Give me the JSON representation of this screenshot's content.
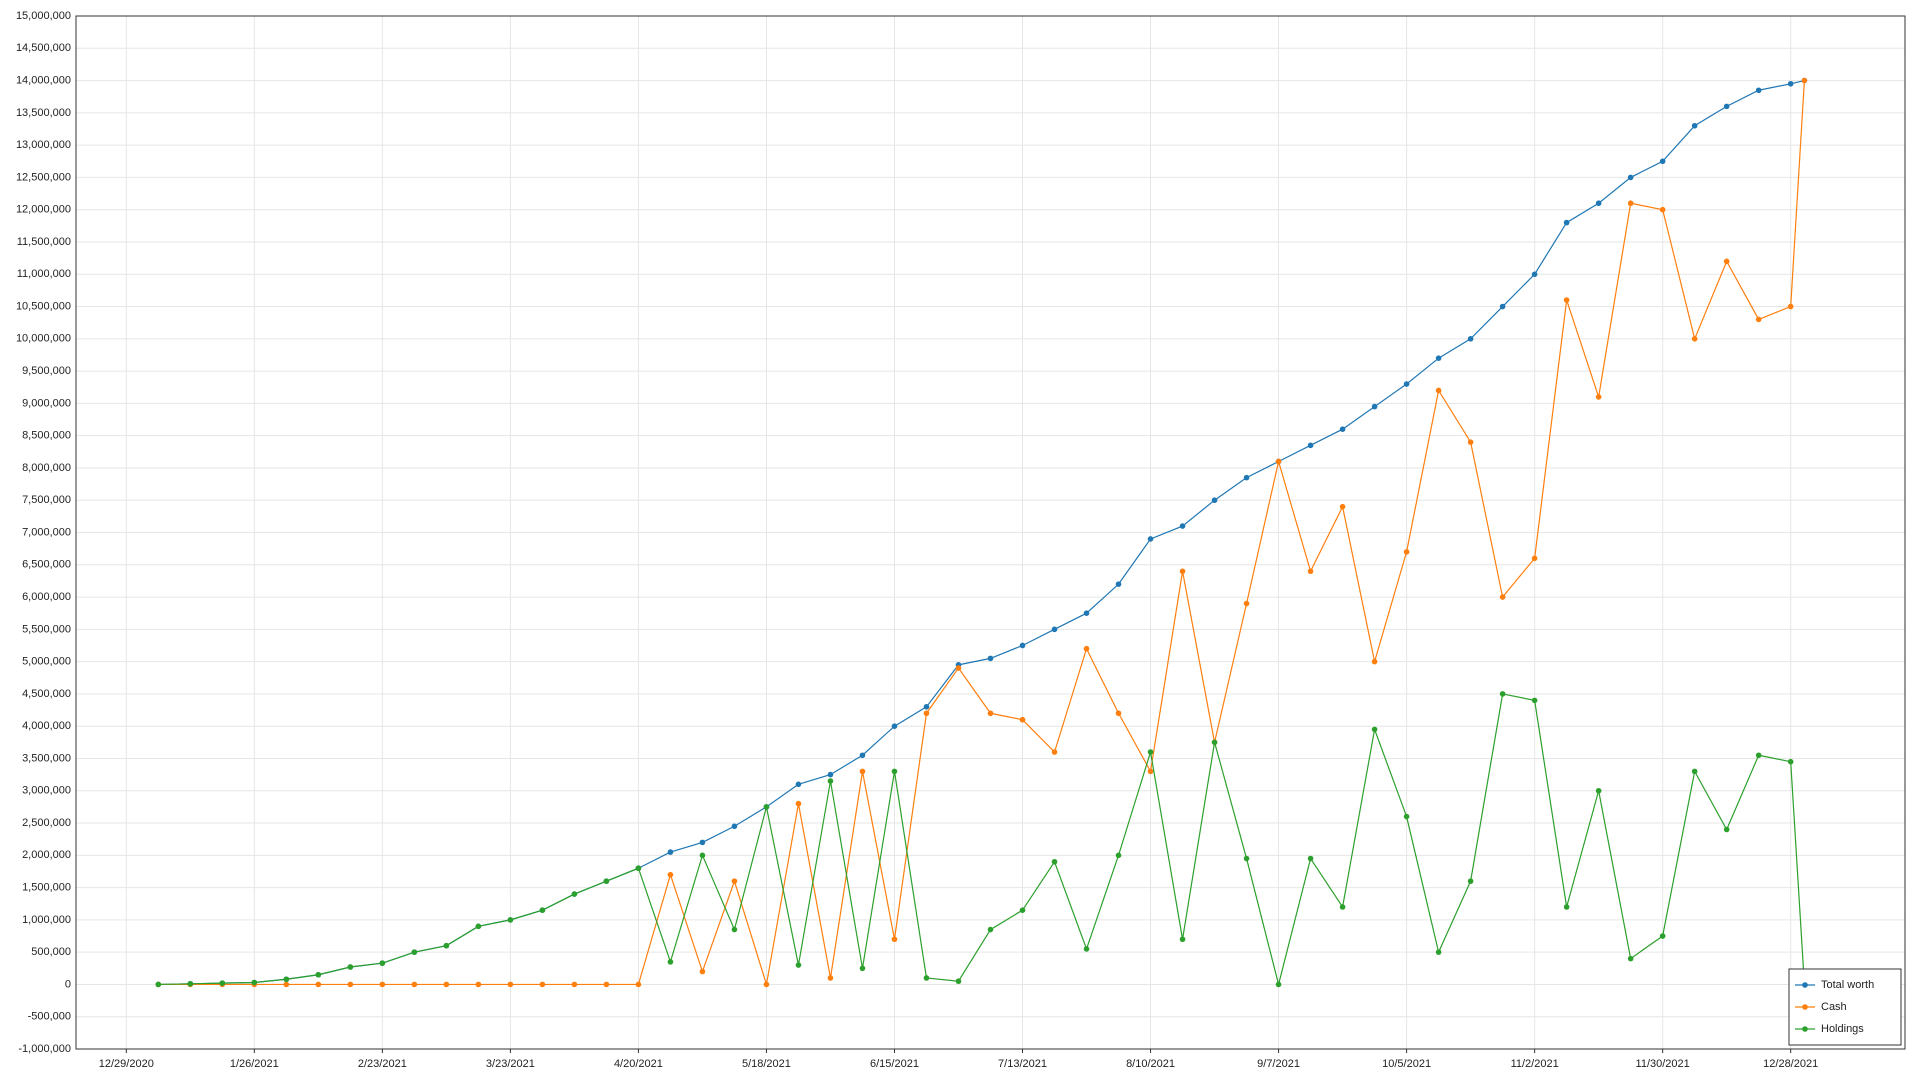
{
  "chart_data": {
    "type": "line",
    "x": [
      "1/5/2021",
      "1/12/2021",
      "1/19/2021",
      "1/26/2021",
      "2/2/2021",
      "2/9/2021",
      "2/16/2021",
      "2/23/2021",
      "3/2/2021",
      "3/9/2021",
      "3/16/2021",
      "3/23/2021",
      "3/30/2021",
      "4/6/2021",
      "4/13/2021",
      "4/20/2021",
      "4/27/2021",
      "5/4/2021",
      "5/11/2021",
      "5/18/2021",
      "5/25/2021",
      "6/1/2021",
      "6/8/2021",
      "6/15/2021",
      "6/22/2021",
      "6/29/2021",
      "7/6/2021",
      "7/13/2021",
      "7/20/2021",
      "7/27/2021",
      "8/3/2021",
      "8/10/2021",
      "8/17/2021",
      "8/24/2021",
      "8/31/2021",
      "9/7/2021",
      "9/14/2021",
      "9/21/2021",
      "9/28/2021",
      "10/5/2021",
      "10/12/2021",
      "10/19/2021",
      "10/26/2021",
      "11/2/2021",
      "11/9/2021",
      "11/16/2021",
      "11/23/2021",
      "11/30/2021",
      "12/7/2021",
      "12/14/2021",
      "12/21/2021",
      "12/28/2021",
      "12/31/2021"
    ],
    "series": [
      {
        "name": "Total worth",
        "color": "#1f77b4",
        "values": [
          0,
          10000,
          20000,
          30000,
          80000,
          150000,
          270000,
          330000,
          500000,
          600000,
          900000,
          1000000,
          1150000,
          1400000,
          1600000,
          1800000,
          2050000,
          2200000,
          2450000,
          2750000,
          3100000,
          3250000,
          3550000,
          4000000,
          4300000,
          4950000,
          5050000,
          5250000,
          5500000,
          5750000,
          6200000,
          6900000,
          7100000,
          7500000,
          7850000,
          8100000,
          8350000,
          8600000,
          8950000,
          9300000,
          9700000,
          10000000,
          10500000,
          11000000,
          11800000,
          12100000,
          12500000,
          12750000,
          13300000,
          13600000,
          13850000,
          13950000,
          14000000
        ]
      },
      {
        "name": "Cash",
        "color": "#ff7f0e",
        "values": [
          0,
          0,
          0,
          0,
          0,
          0,
          0,
          0,
          0,
          0,
          0,
          0,
          0,
          0,
          0,
          0,
          1700000,
          200000,
          1600000,
          0,
          2800000,
          100000,
          3300000,
          700000,
          4200000,
          4900000,
          4200000,
          4100000,
          3600000,
          5200000,
          4200000,
          3300000,
          6400000,
          3750000,
          5900000,
          8100000,
          6400000,
          7400000,
          5000000,
          6700000,
          9200000,
          8400000,
          6000000,
          6600000,
          10600000,
          9100000,
          12100000,
          12000000,
          10000000,
          11200000,
          10300000,
          10500000,
          14000000
        ]
      },
      {
        "name": "Holdings",
        "color": "#2ca02c",
        "values": [
          0,
          10000,
          20000,
          30000,
          80000,
          150000,
          270000,
          330000,
          500000,
          600000,
          900000,
          1000000,
          1150000,
          1400000,
          1600000,
          1800000,
          350000,
          2000000,
          850000,
          2750000,
          300000,
          3150000,
          250000,
          3300000,
          100000,
          50000,
          850000,
          1150000,
          1900000,
          550000,
          2000000,
          3600000,
          700000,
          3750000,
          1950000,
          0,
          1950000,
          1200000,
          3950000,
          2600000,
          500000,
          1600000,
          4500000,
          4400000,
          1200000,
          3000000,
          400000,
          750000,
          3300000,
          2400000,
          3550000,
          3450000,
          0
        ]
      }
    ],
    "xlim": [
      "12/18/2020",
      "1/22/2022"
    ],
    "xticks": [
      "12/29/2020",
      "1/26/2021",
      "2/23/2021",
      "3/23/2021",
      "4/20/2021",
      "5/18/2021",
      "6/15/2021",
      "7/13/2021",
      "8/10/2021",
      "9/7/2021",
      "10/5/2021",
      "11/2/2021",
      "11/30/2021",
      "12/28/2021"
    ],
    "ylim": [
      -1000000,
      15000000
    ],
    "yticks": [
      {
        "value": -1000000,
        "label": "-1,000,000"
      },
      {
        "value": -500000,
        "label": "-500,000"
      },
      0,
      {
        "value": 500000,
        "label": "500,000"
      },
      {
        "value": 1000000,
        "label": "1,000,000"
      },
      {
        "value": 1500000,
        "label": "1,500,000"
      },
      {
        "value": 2000000,
        "label": "2,000,000"
      },
      {
        "value": 2500000,
        "label": "2,500,000"
      },
      {
        "value": 3000000,
        "label": "3,000,000"
      },
      {
        "value": 3500000,
        "label": "3,500,000"
      },
      {
        "value": 4000000,
        "label": "4,000,000"
      },
      {
        "value": 4500000,
        "label": "4,500,000"
      },
      {
        "value": 5000000,
        "label": "5,000,000"
      },
      {
        "value": 5500000,
        "label": "5,500,000"
      },
      {
        "value": 6000000,
        "label": "6,000,000"
      },
      {
        "value": 6500000,
        "label": "6,500,000"
      },
      {
        "value": 7000000,
        "label": "7,000,000"
      },
      {
        "value": 7500000,
        "label": "7,500,000"
      },
      {
        "value": 8000000,
        "label": "8,000,000"
      },
      {
        "value": 8500000,
        "label": "8,500,000"
      },
      {
        "value": 9000000,
        "label": "9,000,000"
      },
      {
        "value": 9500000,
        "label": "9,500,000"
      },
      {
        "value": 10000000,
        "label": "10,000,000"
      },
      {
        "value": 10500000,
        "label": "10,500,000"
      },
      {
        "value": 11000000,
        "label": "11,000,000"
      },
      {
        "value": 11500000,
        "label": "11,500,000"
      },
      {
        "value": 12000000,
        "label": "12,000,000"
      },
      {
        "value": 12500000,
        "label": "12,500,000"
      },
      {
        "value": 13000000,
        "label": "13,000,000"
      },
      {
        "value": 13500000,
        "label": "13,500,000"
      },
      {
        "value": 14000000,
        "label": "14,000,000"
      },
      {
        "value": 14500000,
        "label": "14,500,000"
      },
      {
        "value": 15000000,
        "label": "15,000,000"
      }
    ],
    "grid": true,
    "legend": "bottom-right"
  }
}
